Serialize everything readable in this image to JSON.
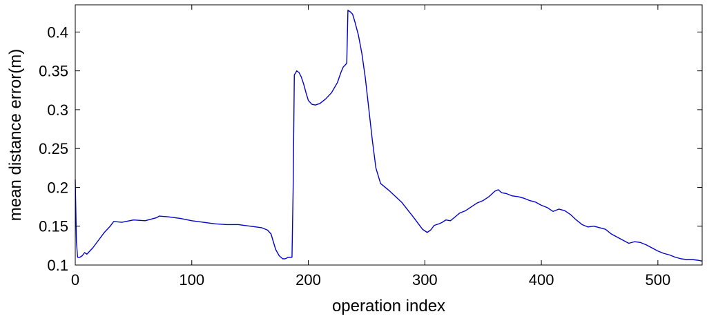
{
  "chart_data": {
    "type": "line",
    "title": "",
    "xlabel": "operation index",
    "ylabel": "mean distance error(m)",
    "xlim": [
      0,
      538
    ],
    "ylim": [
      0.1,
      0.435
    ],
    "xticks": [
      0,
      100,
      200,
      300,
      400,
      500
    ],
    "yticks": [
      0.1,
      0.15,
      0.2,
      0.25,
      0.3,
      0.35,
      0.4
    ],
    "xtick_labels": [
      "0",
      "100",
      "200",
      "300",
      "400",
      "500"
    ],
    "ytick_labels": [
      "0.1",
      "0.15",
      "0.2",
      "0.25",
      "0.3",
      "0.35",
      "0.4"
    ],
    "grid": false,
    "legend": "none",
    "line_color": "#0000cc",
    "series": [
      {
        "x": [
          0,
          1,
          2,
          4,
          6,
          8,
          10,
          15,
          20,
          25,
          30,
          33,
          40,
          50,
          60,
          70,
          72,
          80,
          90,
          100,
          110,
          120,
          130,
          140,
          150,
          160,
          165,
          168,
          170,
          172,
          175,
          178,
          180,
          183,
          185,
          186,
          187,
          188,
          189,
          190,
          192,
          194,
          196,
          198,
          200,
          203,
          206,
          210,
          215,
          220,
          225,
          228,
          230,
          232,
          233,
          234,
          236,
          238,
          240,
          243,
          246,
          249,
          252,
          255,
          258,
          262,
          270,
          280,
          290,
          298,
          302,
          305,
          308,
          312,
          315,
          318,
          322,
          326,
          330,
          335,
          340,
          345,
          350,
          355,
          360,
          363,
          366,
          370,
          375,
          380,
          385,
          390,
          395,
          400,
          405,
          410,
          415,
          420,
          425,
          430,
          435,
          440,
          445,
          450,
          455,
          460,
          465,
          470,
          475,
          480,
          485,
          490,
          495,
          500,
          505,
          510,
          515,
          520,
          525,
          530,
          535,
          538
        ],
        "y": [
          0.21,
          0.13,
          0.11,
          0.11,
          0.112,
          0.116,
          0.114,
          0.122,
          0.132,
          0.142,
          0.15,
          0.156,
          0.155,
          0.158,
          0.157,
          0.161,
          0.163,
          0.162,
          0.16,
          0.157,
          0.155,
          0.153,
          0.152,
          0.152,
          0.15,
          0.148,
          0.145,
          0.14,
          0.13,
          0.12,
          0.112,
          0.108,
          0.108,
          0.11,
          0.11,
          0.11,
          0.2,
          0.345,
          0.347,
          0.35,
          0.348,
          0.342,
          0.333,
          0.322,
          0.312,
          0.307,
          0.306,
          0.308,
          0.314,
          0.322,
          0.335,
          0.348,
          0.355,
          0.358,
          0.36,
          0.428,
          0.426,
          0.423,
          0.413,
          0.396,
          0.372,
          0.34,
          0.3,
          0.26,
          0.225,
          0.205,
          0.195,
          0.181,
          0.162,
          0.146,
          0.142,
          0.145,
          0.151,
          0.153,
          0.155,
          0.158,
          0.157,
          0.162,
          0.167,
          0.17,
          0.175,
          0.18,
          0.183,
          0.188,
          0.195,
          0.197,
          0.193,
          0.192,
          0.189,
          0.188,
          0.186,
          0.183,
          0.181,
          0.177,
          0.174,
          0.169,
          0.172,
          0.17,
          0.165,
          0.158,
          0.152,
          0.149,
          0.15,
          0.148,
          0.146,
          0.14,
          0.136,
          0.132,
          0.128,
          0.13,
          0.129,
          0.126,
          0.122,
          0.118,
          0.115,
          0.113,
          0.11,
          0.108,
          0.107,
          0.107,
          0.106,
          0.105
        ]
      }
    ]
  }
}
